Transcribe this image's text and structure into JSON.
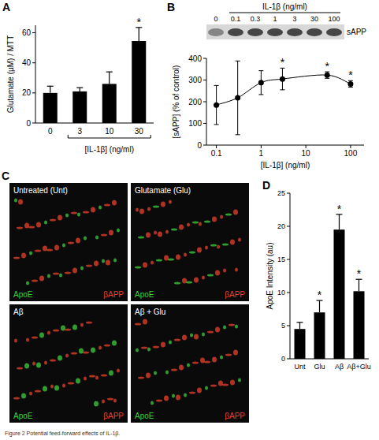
{
  "chart_data": [
    {
      "panel": "A",
      "type": "bar",
      "categories": [
        "0",
        "3",
        "10",
        "30"
      ],
      "values": [
        20,
        21,
        26,
        54.5
      ],
      "errors": [
        4.5,
        2.5,
        8,
        9
      ],
      "color": "#000000",
      "ylim": [
        0,
        65
      ],
      "yticks": [
        0,
        20,
        40,
        60
      ],
      "ylabel": "Glutamate (µM) / MTT",
      "xlabel": "[IL-1β] (ng/ml)",
      "annotations": [
        {
          "category": "30",
          "text": "*"
        }
      ]
    },
    {
      "panel": "B",
      "type": "line",
      "x": [
        0.1,
        0.3,
        1,
        3,
        30,
        100
      ],
      "values": [
        185,
        218,
        288,
        305,
        323,
        282
      ],
      "errors": [
        90,
        170,
        55,
        50,
        15,
        15
      ],
      "color": "#000000",
      "marker": "circle",
      "log": "x",
      "xlim": [
        0.06,
        200
      ],
      "xticks": [
        0.1,
        1,
        10,
        100
      ],
      "ylim": [
        0,
        400
      ],
      "yticks": [
        0,
        100,
        200,
        300,
        400
      ],
      "ylabel": "[sAPP] (% of control)",
      "xlabel": "[IL-1β] (ng/ml)",
      "annotations": [
        {
          "x": 3,
          "text": "*"
        },
        {
          "x": 30,
          "text": "*"
        },
        {
          "x": 100,
          "text": "*"
        }
      ],
      "blot": {
        "title": "IL-1β (ng/ml)",
        "lanes": [
          "0",
          "0.1",
          "0.3",
          "1",
          "3",
          "30",
          "100"
        ],
        "label": "sAPP"
      }
    },
    {
      "panel": "D",
      "type": "bar",
      "categories": [
        "Unt",
        "Glu",
        "Aβ",
        "Aβ+Glu"
      ],
      "values": [
        4.5,
        7,
        19.5,
        10.2
      ],
      "errors": [
        1,
        1.8,
        2.3,
        1.8
      ],
      "color": "#000000",
      "ylim": [
        0,
        25
      ],
      "yticks": [
        0,
        5,
        10,
        15,
        20,
        25
      ],
      "ylabel": "ApoE Intensity (au)",
      "annotations": [
        {
          "category": "Glu",
          "text": "*"
        },
        {
          "category": "Aβ",
          "text": "*"
        },
        {
          "category": "Aβ+Glu",
          "text": "*"
        }
      ]
    }
  ],
  "micrographs": {
    "panel": "C",
    "channels": [
      {
        "name": "ApoE",
        "color": "#3ccf3c"
      },
      {
        "name": "βAPP",
        "color": "#e8402a"
      }
    ],
    "images": [
      "Untreated (Unt)",
      "Glutamate (Glu)",
      "Aβ",
      "Aβ + Glu"
    ]
  },
  "caption": "Figure 2 Potential feed-forward effects of IL-1β."
}
